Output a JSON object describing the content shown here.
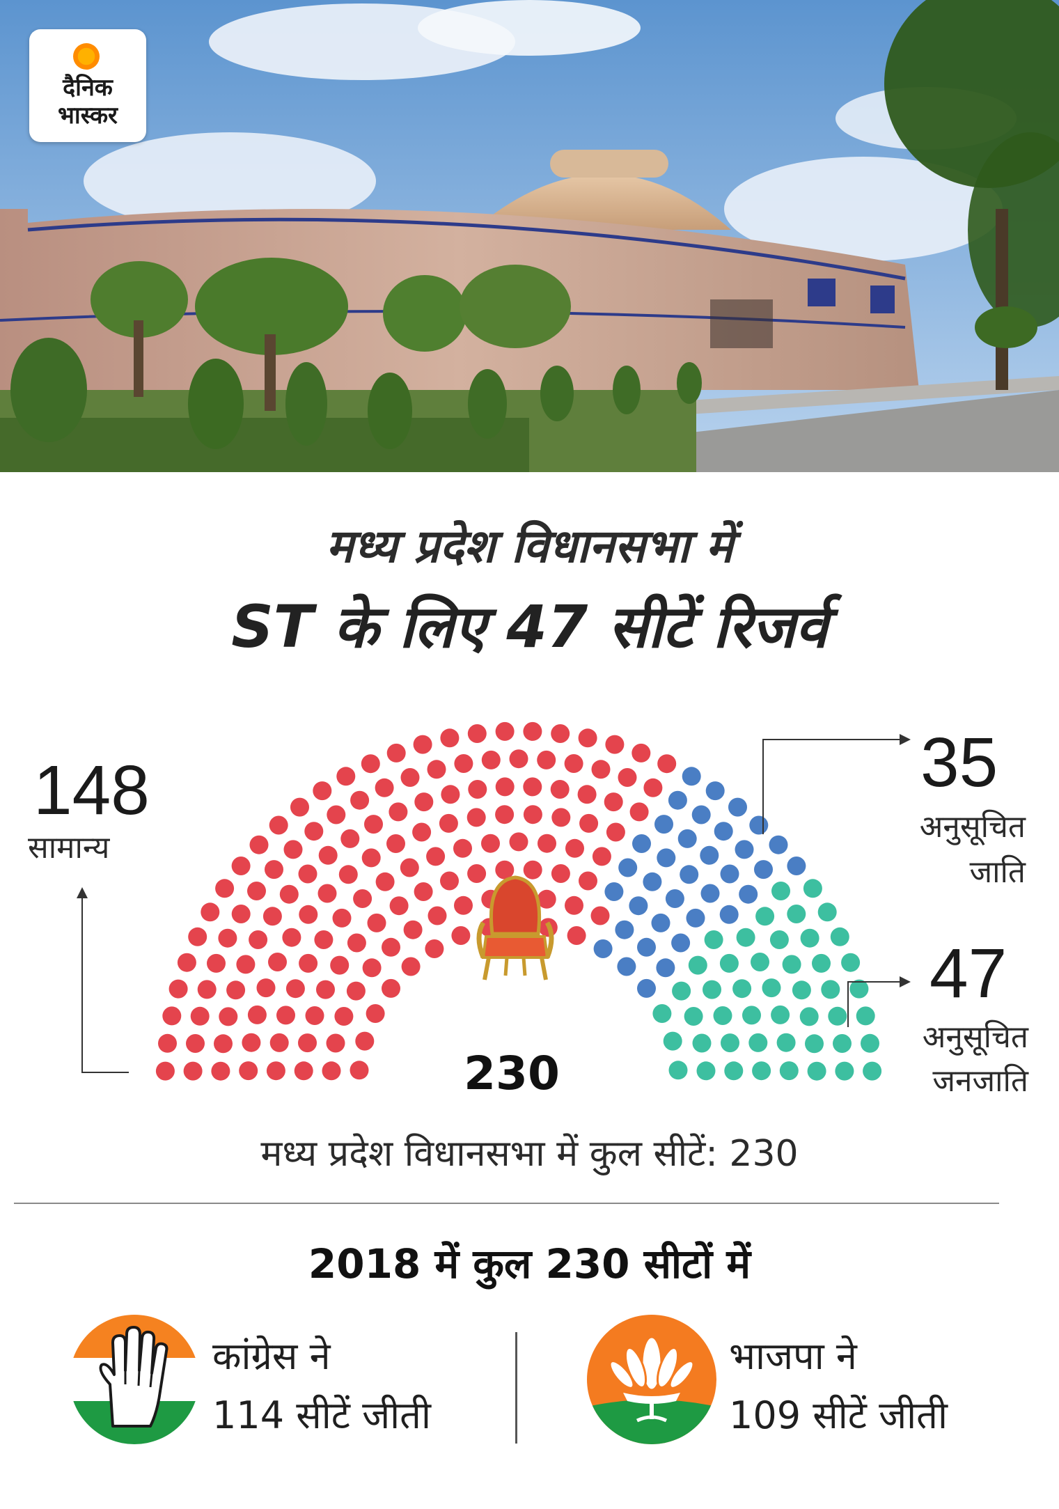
{
  "brand": {
    "line1": "दैनिक",
    "line2": "भास्कर"
  },
  "headline": {
    "line1": "मध्य प्रदेश विधानसभा में",
    "line2": "ST के लिए 47 सीटें रिजर्व"
  },
  "chart_data": {
    "type": "parliament",
    "total": 230,
    "series": [
      {
        "name": "सामान्य",
        "value": 148,
        "color": "#e4444d"
      },
      {
        "name": "अनुसूचित जाति",
        "value": 35,
        "color": "#4a7ec4"
      },
      {
        "name": "अनुसूचित जनजाति",
        "value": 47,
        "color": "#3dbfa0"
      }
    ],
    "labels": {
      "general_value": "148",
      "general_name": "सामान्य",
      "sc_value": "35",
      "sc_name_line1": "अनुसूचित",
      "sc_name_line2": "जाति",
      "st_value": "47",
      "st_name_line1": "अनुसूचित",
      "st_name_line2": "जनजाति",
      "center_total": "230"
    }
  },
  "total_line": "मध्य प्रदेश विधानसभा में कुल सीटें: 230",
  "results": {
    "heading": "2018 में कुल 230 सीटों में",
    "congress": {
      "line1": "कांग्रेस ने",
      "line2": "114 सीटें जीती",
      "icon": "congress-hand-symbol"
    },
    "bjp": {
      "line1": "भाजपा ने",
      "line2": "109 सीटें जीती",
      "icon": "bjp-lotus-symbol"
    }
  }
}
